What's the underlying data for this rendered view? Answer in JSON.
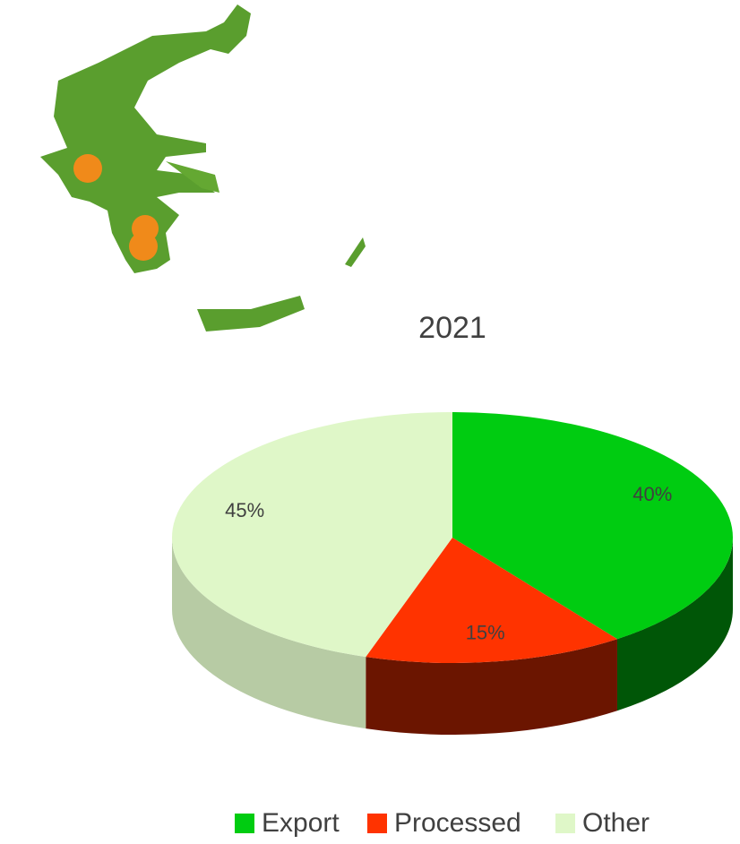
{
  "chart_data": {
    "type": "pie",
    "title": "2021",
    "categories": [
      "Export",
      "Processed",
      "Other"
    ],
    "values": [
      40,
      15,
      45
    ],
    "value_labels": [
      "40%",
      "15%",
      "45%"
    ],
    "colors": [
      "#00cc11",
      "#ff3300",
      "#dff7c8"
    ],
    "legend": "bottom"
  }
}
